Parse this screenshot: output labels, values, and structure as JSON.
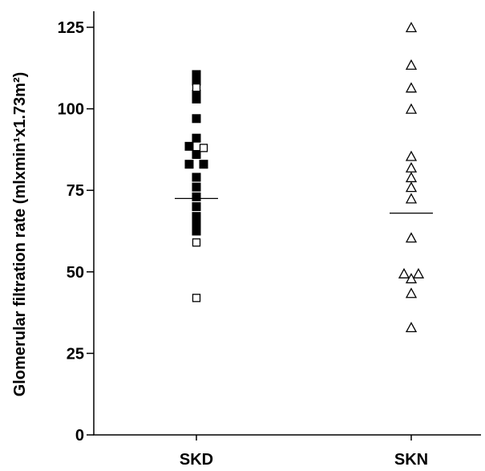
{
  "chart_data": {
    "type": "scatter",
    "title": "",
    "ylabel": "Glomerular filtration rate (mlxmin¹x1.73m²)",
    "xlabel": "",
    "categories": [
      "SKD",
      "SKN"
    ],
    "ylim": [
      0,
      125
    ],
    "yticks": [
      0,
      25,
      50,
      75,
      100,
      125
    ],
    "grid": false,
    "legend": "none",
    "series": [
      {
        "category": "SKD",
        "marker": "filled-square",
        "color": "#000000",
        "points": [
          {
            "dx": 0,
            "y": 110.5
          },
          {
            "dx": 0,
            "y": 108.5
          },
          {
            "dx": 0,
            "y": 104.5
          },
          {
            "dx": 0,
            "y": 103
          },
          {
            "dx": 0,
            "y": 97
          },
          {
            "dx": 0,
            "y": 91
          },
          {
            "dx": -1,
            "y": 88.5
          },
          {
            "dx": 0,
            "y": 86
          },
          {
            "dx": -1,
            "y": 83
          },
          {
            "dx": 1,
            "y": 83
          },
          {
            "dx": 0,
            "y": 79
          },
          {
            "dx": 0,
            "y": 76
          },
          {
            "dx": 0,
            "y": 73
          },
          {
            "dx": 0,
            "y": 70
          },
          {
            "dx": 0,
            "y": 67
          },
          {
            "dx": 0,
            "y": 64.5
          },
          {
            "dx": 0,
            "y": 62.5
          }
        ]
      },
      {
        "category": "SKD",
        "marker": "open-square",
        "color": "#000000",
        "points": [
          {
            "dx": 0,
            "y": 106.5
          },
          {
            "dx": 1,
            "y": 88
          },
          {
            "dx": 0,
            "y": 59
          },
          {
            "dx": 0,
            "y": 42
          }
        ]
      },
      {
        "category": "SKN",
        "marker": "open-triangle",
        "color": "#000000",
        "points": [
          {
            "dx": 0,
            "y": 125
          },
          {
            "dx": 0,
            "y": 113.5
          },
          {
            "dx": 0,
            "y": 106.5
          },
          {
            "dx": 0,
            "y": 100
          },
          {
            "dx": 0,
            "y": 85.5
          },
          {
            "dx": 0,
            "y": 82
          },
          {
            "dx": 0,
            "y": 79
          },
          {
            "dx": 0,
            "y": 76
          },
          {
            "dx": 0,
            "y": 72.5
          },
          {
            "dx": 0,
            "y": 60.5
          },
          {
            "dx": -1,
            "y": 49.5
          },
          {
            "dx": 1,
            "y": 49.5
          },
          {
            "dx": 0,
            "y": 48
          },
          {
            "dx": 0,
            "y": 43.5
          },
          {
            "dx": 0,
            "y": 33
          }
        ]
      }
    ],
    "means": [
      {
        "category": "SKD",
        "y": 72.5
      },
      {
        "category": "SKN",
        "y": 68
      }
    ]
  }
}
